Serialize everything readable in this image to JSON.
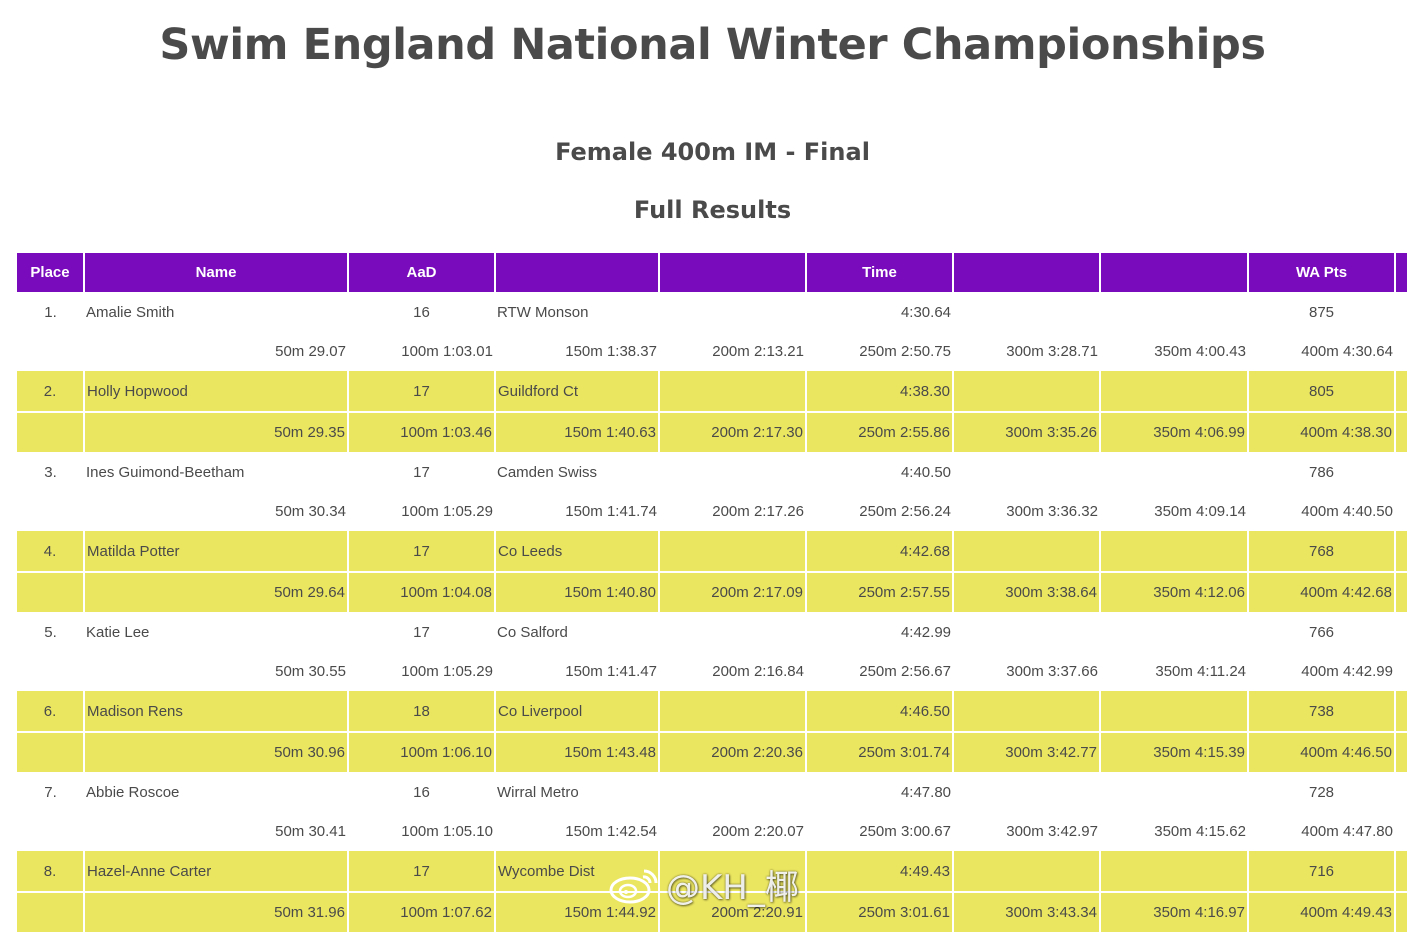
{
  "title": "Swim England National Winter Championships",
  "event": "Female 400m IM - Final",
  "section": "Full Results",
  "headers": [
    "Place",
    "Name",
    "AaD",
    "",
    "",
    "Time",
    "",
    "",
    "WA Pts",
    ""
  ],
  "colors": {
    "header_bg": "#7a0bbd",
    "highlight_row": "#ebe660"
  },
  "results": [
    {
      "place": "1.",
      "name": "Amalie Smith",
      "aad": "16",
      "club": "RTW Monson",
      "time": "4:30.64",
      "wa_pts": "875",
      "splits": [
        "50m 29.07",
        "100m 1:03.01",
        "150m 1:38.37",
        "200m 2:13.21",
        "250m 2:50.75",
        "300m 3:28.71",
        "350m 4:00.43",
        "400m 4:30.64"
      ]
    },
    {
      "place": "2.",
      "name": "Holly Hopwood",
      "aad": "17",
      "club": "Guildford Ct",
      "time": "4:38.30",
      "wa_pts": "805",
      "splits": [
        "50m 29.35",
        "100m 1:03.46",
        "150m 1:40.63",
        "200m 2:17.30",
        "250m 2:55.86",
        "300m 3:35.26",
        "350m 4:06.99",
        "400m 4:38.30"
      ]
    },
    {
      "place": "3.",
      "name": "Ines Guimond-Beetham",
      "aad": "17",
      "club": "Camden Swiss",
      "time": "4:40.50",
      "wa_pts": "786",
      "splits": [
        "50m 30.34",
        "100m 1:05.29",
        "150m 1:41.74",
        "200m 2:17.26",
        "250m 2:56.24",
        "300m 3:36.32",
        "350m 4:09.14",
        "400m 4:40.50"
      ]
    },
    {
      "place": "4.",
      "name": "Matilda Potter",
      "aad": "17",
      "club": "Co Leeds",
      "time": "4:42.68",
      "wa_pts": "768",
      "splits": [
        "50m 29.64",
        "100m 1:04.08",
        "150m 1:40.80",
        "200m 2:17.09",
        "250m 2:57.55",
        "300m 3:38.64",
        "350m 4:12.06",
        "400m 4:42.68"
      ]
    },
    {
      "place": "5.",
      "name": "Katie Lee",
      "aad": "17",
      "club": "Co Salford",
      "time": "4:42.99",
      "wa_pts": "766",
      "splits": [
        "50m 30.55",
        "100m 1:05.29",
        "150m 1:41.47",
        "200m 2:16.84",
        "250m 2:56.67",
        "300m 3:37.66",
        "350m 4:11.24",
        "400m 4:42.99"
      ]
    },
    {
      "place": "6.",
      "name": "Madison Rens",
      "aad": "18",
      "club": "Co Liverpool",
      "time": "4:46.50",
      "wa_pts": "738",
      "splits": [
        "50m 30.96",
        "100m 1:06.10",
        "150m 1:43.48",
        "200m 2:20.36",
        "250m 3:01.74",
        "300m 3:42.77",
        "350m 4:15.39",
        "400m 4:46.50"
      ]
    },
    {
      "place": "7.",
      "name": "Abbie Roscoe",
      "aad": "16",
      "club": "Wirral Metro",
      "time": "4:47.80",
      "wa_pts": "728",
      "splits": [
        "50m 30.41",
        "100m 1:05.10",
        "150m 1:42.54",
        "200m 2:20.07",
        "250m 3:00.67",
        "300m 3:42.97",
        "350m 4:15.62",
        "400m 4:47.80"
      ]
    },
    {
      "place": "8.",
      "name": "Hazel-Anne Carter",
      "aad": "17",
      "club": "Wycombe Dist",
      "time": "4:49.43",
      "wa_pts": "716",
      "splits": [
        "50m 31.96",
        "100m 1:07.62",
        "150m 1:44.92",
        "200m 2:20.91",
        "250m 3:01.61",
        "300m 3:43.34",
        "350m 4:16.97",
        "400m 4:49.43"
      ]
    }
  ],
  "watermark": "@KH_椰",
  "watermark_icon": "weibo-logo-icon"
}
